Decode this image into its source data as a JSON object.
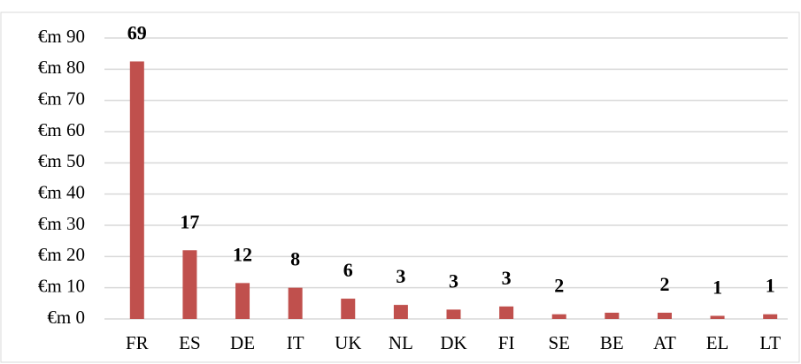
{
  "chart_data": {
    "type": "bar",
    "categories": [
      "FR",
      "ES",
      "DE",
      "IT",
      "UK",
      "NL",
      "DK",
      "FI",
      "SE",
      "BE",
      "AT",
      "EL",
      "LT"
    ],
    "values": [
      82.5,
      22,
      11.5,
      10,
      6.5,
      4.5,
      3,
      4,
      1.5,
      2,
      2,
      1,
      1.5
    ],
    "annotations": [
      69,
      17,
      12,
      8,
      6,
      3,
      3,
      3,
      2,
      null,
      2,
      1,
      1
    ],
    "color": "#c0504d",
    "ylim": [
      0,
      90
    ],
    "yticks": [
      {
        "value": 0,
        "label": "€m 0"
      },
      {
        "value": 10,
        "label": "€m 10"
      },
      {
        "value": 20,
        "label": "€m 20"
      },
      {
        "value": 30,
        "label": "€m 30"
      },
      {
        "value": 40,
        "label": "€m 40"
      },
      {
        "value": 50,
        "label": "€m 50"
      },
      {
        "value": 60,
        "label": "€m 60"
      },
      {
        "value": 70,
        "label": "€m 70"
      },
      {
        "value": 80,
        "label": "€m 80"
      },
      {
        "value": 90,
        "label": "€m 90"
      }
    ],
    "grid": true
  }
}
